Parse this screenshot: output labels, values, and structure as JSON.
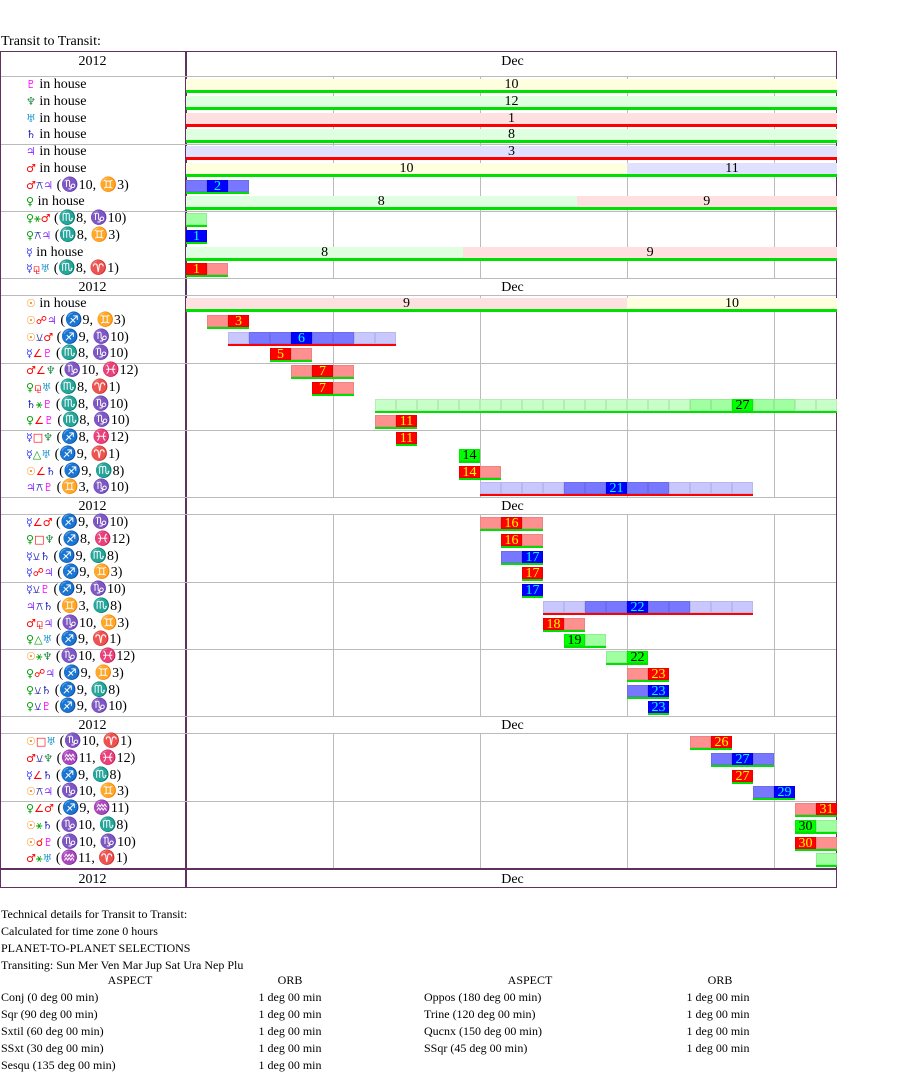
{
  "title": "Transit to Transit:",
  "year": "2012",
  "month": "Dec",
  "days_in_month": 31,
  "colors": {
    "red": "#ff0000",
    "blue": "#0000ff",
    "green": "#00ff00",
    "frame": "#603060"
  },
  "planet_colors": {
    "☉": "#ff8000",
    "☿": "#3333ff",
    "♀": "#00a000",
    "♂": "#ff0000",
    "♃": "#8833ff",
    "♄": "#2222bb",
    "♅": "#2299cc",
    "♆": "#228844",
    "♇": "#ff00ff"
  },
  "aspect_colors": {
    "∠": "#ff0000",
    "□": "#ff0000",
    "☍": "#ff0000",
    "⚼": "#ff0000",
    "☌": "#ff0000",
    "⚹": "#00a000",
    "△": "#00a000",
    "⚺": "#2222aa",
    "⚻": "#2222aa"
  },
  "sections": [
    {
      "rows": [
        {
          "planet": "♇",
          "text": "in house",
          "segments": [
            {
              "start": 1,
              "end": 32,
              "house": "10",
              "bg": "#ffffe0",
              "line": "#00e000"
            }
          ]
        },
        {
          "planet": "♆",
          "text": "in house",
          "segments": [
            {
              "start": 1,
              "end": 32,
              "house": "12",
              "bg": "#e0ffe0",
              "line": "#00e000"
            }
          ]
        },
        {
          "planet": "♅",
          "text": "in house",
          "segments": [
            {
              "start": 1,
              "end": 32,
              "house": "1",
              "bg": "#ffe0e0",
              "line": "#ff0000"
            }
          ]
        },
        {
          "planet": "♄",
          "text": "in house",
          "segments": [
            {
              "start": 1,
              "end": 32,
              "house": "8",
              "bg": "#e0ffe0",
              "line": "#00e000"
            }
          ]
        },
        {
          "planet": "♃",
          "text": "in house",
          "segments": [
            {
              "start": 1,
              "end": 32,
              "house": "3",
              "bg": "#e0e0ff",
              "line": "#ff0000"
            }
          ]
        },
        {
          "planet": "♂",
          "text": "in house",
          "segments": [
            {
              "start": 1,
              "end": 22,
              "house": "10",
              "bg": "#ffffe0",
              "line": "#00e000"
            },
            {
              "start": 22,
              "end": 32,
              "house": "11",
              "bg": "#e0e0ff",
              "line": "#00e000"
            }
          ]
        },
        {
          "p1": "♂",
          "asp": "⚻",
          "p2": "♃",
          "pos": "(♑10, ♊3)",
          "start": 1,
          "end": 3,
          "exact": 2,
          "type": "blue"
        },
        {
          "planet": "♀",
          "text": "in house",
          "segments": [
            {
              "start": 1,
              "end": 19.6,
              "house": "8",
              "bg": "#e0ffe0",
              "line": "#00e000"
            },
            {
              "start": 19.6,
              "end": 32,
              "house": "9",
              "bg": "#ffe0e0",
              "line": "#00e000"
            }
          ]
        },
        {
          "p1": "♀",
          "asp": "⚹",
          "p2": "♂",
          "pos": "(♏8, ♑10)",
          "start": 1,
          "end": 1,
          "exact": null,
          "type": "green"
        },
        {
          "p1": "♀",
          "asp": "⚻",
          "p2": "♃",
          "pos": "(♏8, ♊3)",
          "start": 1,
          "end": 1,
          "exact": 1,
          "type": "blue"
        },
        {
          "planet": "☿",
          "text": "in house",
          "segments": [
            {
              "start": 1,
              "end": 14.2,
              "house": "8",
              "bg": "#e0ffe0",
              "line": "#00e000"
            },
            {
              "start": 14.2,
              "end": 32,
              "house": "9",
              "bg": "#ffe0e0",
              "line": "#00e000"
            }
          ]
        },
        {
          "p1": "☿",
          "asp": "⚼",
          "p2": "♅",
          "pos": "(♏8, ♈1)",
          "start": 1,
          "end": 2,
          "exact": 1,
          "type": "red"
        }
      ]
    },
    {
      "rows": [
        {
          "planet": "☉",
          "text": "in house",
          "segments": [
            {
              "start": 1,
              "end": 22,
              "house": "9",
              "bg": "#ffe0e0",
              "line": "#00e000"
            },
            {
              "start": 22,
              "end": 32,
              "house": "10",
              "bg": "#ffffe0",
              "line": "#00e000"
            }
          ]
        },
        {
          "p1": "☉",
          "asp": "☍",
          "p2": "♃",
          "pos": "(♐9, ♊3)",
          "start": 2,
          "end": 3,
          "exact": 3,
          "type": "red"
        },
        {
          "p1": "☉",
          "asp": "⚺",
          "p2": "♂",
          "pos": "(♐9, ♑10)",
          "start": 3,
          "end": 10,
          "exact": 6,
          "type": "blue"
        },
        {
          "p1": "☿",
          "asp": "∠",
          "p2": "♇",
          "pos": "(♏8, ♑10)",
          "start": 5,
          "end": 6,
          "exact": 5,
          "type": "red"
        },
        {
          "p1": "♂",
          "asp": "∠",
          "p2": "♆",
          "pos": "(♑10, ♓12)",
          "start": 6,
          "end": 8,
          "exact": 7,
          "type": "red"
        },
        {
          "p1": "♀",
          "asp": "⚼",
          "p2": "♅",
          "pos": "(♏8, ♈1)",
          "start": 7,
          "end": 8,
          "exact": 7,
          "type": "red"
        },
        {
          "p1": "♄",
          "asp": "⚹",
          "p2": "♇",
          "pos": "(♏8, ♑10)",
          "start": 10,
          "end": 31,
          "exact": 27,
          "type": "green"
        },
        {
          "p1": "♀",
          "asp": "∠",
          "p2": "♇",
          "pos": "(♏8, ♑10)",
          "start": 10,
          "end": 11,
          "exact": 11,
          "type": "red"
        },
        {
          "p1": "☿",
          "asp": "□",
          "p2": "♆",
          "pos": "(♐8, ♓12)",
          "start": 11,
          "end": 11,
          "exact": 11,
          "type": "red"
        },
        {
          "p1": "☿",
          "asp": "△",
          "p2": "♅",
          "pos": "(♐9, ♈1)",
          "start": 14,
          "end": 14,
          "exact": 14,
          "type": "green"
        },
        {
          "p1": "☉",
          "asp": "∠",
          "p2": "♄",
          "pos": "(♐9, ♏8)",
          "start": 14,
          "end": 15,
          "exact": 14,
          "type": "red"
        },
        {
          "p1": "♃",
          "asp": "⚻",
          "p2": "♇",
          "pos": "(♊3, ♑10)",
          "start": 15,
          "end": 27,
          "exact": 21,
          "type": "blue"
        }
      ]
    },
    {
      "rows": [
        {
          "p1": "☿",
          "asp": "∠",
          "p2": "♂",
          "pos": "(♐9, ♑10)",
          "start": 15,
          "end": 17,
          "exact": 16,
          "type": "red"
        },
        {
          "p1": "♀",
          "asp": "□",
          "p2": "♆",
          "pos": "(♐8, ♓12)",
          "start": 16,
          "end": 17,
          "exact": 16,
          "type": "red"
        },
        {
          "p1": "☿",
          "asp": "⚺",
          "p2": "♄",
          "pos": "(♐9, ♏8)",
          "start": 16,
          "end": 17,
          "exact": 17,
          "type": "blue"
        },
        {
          "p1": "☿",
          "asp": "☍",
          "p2": "♃",
          "pos": "(♐9, ♊3)",
          "start": 17,
          "end": 17,
          "exact": 17,
          "type": "red"
        },
        {
          "p1": "☿",
          "asp": "⚺",
          "p2": "♇",
          "pos": "(♐9, ♑10)",
          "start": 17,
          "end": 17,
          "exact": 17,
          "type": "blue"
        },
        {
          "p1": "♃",
          "asp": "⚻",
          "p2": "♄",
          "pos": "(♊3, ♏8)",
          "start": 18,
          "end": 27,
          "exact": 22,
          "type": "blue"
        },
        {
          "p1": "♂",
          "asp": "⚼",
          "p2": "♃",
          "pos": "(♑10, ♊3)",
          "start": 18,
          "end": 19,
          "exact": 18,
          "type": "red"
        },
        {
          "p1": "♀",
          "asp": "△",
          "p2": "♅",
          "pos": "(♐9, ♈1)",
          "start": 19,
          "end": 20,
          "exact": 19,
          "type": "green"
        },
        {
          "p1": "☉",
          "asp": "⚹",
          "p2": "♆",
          "pos": "(♑10, ♓12)",
          "start": 21,
          "end": 22,
          "exact": 22,
          "type": "green"
        },
        {
          "p1": "♀",
          "asp": "☍",
          "p2": "♃",
          "pos": "(♐9, ♊3)",
          "start": 22,
          "end": 23,
          "exact": 23,
          "type": "red"
        },
        {
          "p1": "♀",
          "asp": "⚺",
          "p2": "♄",
          "pos": "(♐9, ♏8)",
          "start": 22,
          "end": 23,
          "exact": 23,
          "type": "blue"
        },
        {
          "p1": "♀",
          "asp": "⚺",
          "p2": "♇",
          "pos": "(♐9, ♑10)",
          "start": 23,
          "end": 23,
          "exact": 23,
          "type": "blue"
        }
      ]
    },
    {
      "rows": [
        {
          "p1": "☉",
          "asp": "□",
          "p2": "♅",
          "pos": "(♑10, ♈1)",
          "start": 25,
          "end": 26,
          "exact": 26,
          "type": "red"
        },
        {
          "p1": "♂",
          "asp": "⚺",
          "p2": "♆",
          "pos": "(♒11, ♓12)",
          "start": 26,
          "end": 28,
          "exact": 27,
          "type": "blue"
        },
        {
          "p1": "☿",
          "asp": "∠",
          "p2": "♄",
          "pos": "(♐9, ♏8)",
          "start": 27,
          "end": 27,
          "exact": 27,
          "type": "red"
        },
        {
          "p1": "☉",
          "asp": "⚻",
          "p2": "♃",
          "pos": "(♑10, ♊3)",
          "start": 28,
          "end": 29,
          "exact": 29,
          "type": "blue"
        },
        {
          "p1": "♀",
          "asp": "∠",
          "p2": "♂",
          "pos": "(♐9, ♒11)",
          "start": 30,
          "end": 31,
          "exact": 31,
          "type": "red"
        },
        {
          "p1": "☉",
          "asp": "⚹",
          "p2": "♄",
          "pos": "(♑10, ♏8)",
          "start": 30,
          "end": 31,
          "exact": 30,
          "type": "green"
        },
        {
          "p1": "☉",
          "asp": "☌",
          "p2": "♇",
          "pos": "(♑10, ♑10)",
          "start": 30,
          "end": 31,
          "exact": 30,
          "type": "red"
        },
        {
          "p1": "♂",
          "asp": "⚹",
          "p2": "♅",
          "pos": "(♒11, ♈1)",
          "start": 31,
          "end": 31,
          "exact": null,
          "type": "green"
        }
      ]
    }
  ],
  "details": {
    "lines": [
      "Technical details for Transit to Transit:",
      "Calculated for time zone 0 hours",
      "PLANET-TO-PLANET SELECTIONS",
      "Transiting: Sun Mer Ven Mar Jup Sat Ura Nep Plu"
    ],
    "aspect_header": "ASPECT",
    "orb_header": "ORB",
    "left": [
      {
        "aspect": "Conj (0 deg 00 min)",
        "orb": "1 deg 00 min"
      },
      {
        "aspect": "Sqr (90 deg 00 min)",
        "orb": "1 deg 00 min"
      },
      {
        "aspect": "Sxtil (60 deg 00 min)",
        "orb": "1 deg 00 min"
      },
      {
        "aspect": "SSxt (30 deg 00 min)",
        "orb": "1 deg 00 min"
      },
      {
        "aspect": "Sesqu (135 deg 00 min)",
        "orb": "1 deg 00 min"
      }
    ],
    "right": [
      {
        "aspect": "Oppos (180 deg 00 min)",
        "orb": "1 deg 00 min"
      },
      {
        "aspect": "Trine (120 deg 00 min)",
        "orb": "1 deg 00 min"
      },
      {
        "aspect": "Qucnx (150 deg 00 min)",
        "orb": "1 deg 00 min"
      },
      {
        "aspect": "SSqr (45 deg 00 min)",
        "orb": "1 deg 00 min"
      }
    ]
  }
}
